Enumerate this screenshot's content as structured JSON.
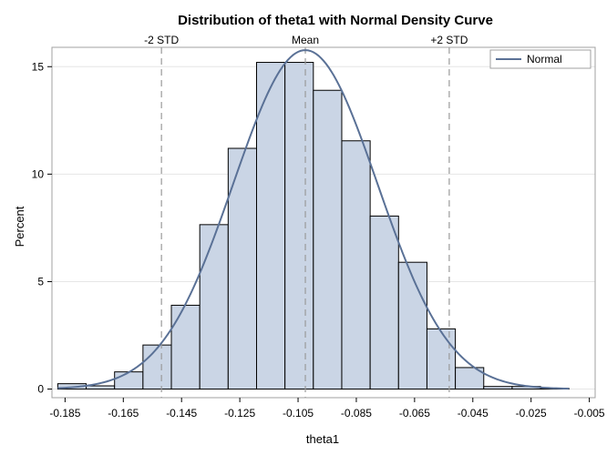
{
  "chart_data": {
    "type": "bar",
    "title": "Distribution of theta1 with Normal Density Curve",
    "xlabel": "theta1",
    "ylabel": "Percent",
    "xlim": [
      -0.1895,
      -0.003
    ],
    "ylim": [
      -0.4,
      15.9
    ],
    "bin_width": 0.00975,
    "bins": [
      {
        "start": -0.1875,
        "value": 0.25
      },
      {
        "start": -0.17775,
        "value": 0.15
      },
      {
        "start": -0.168,
        "value": 0.8
      },
      {
        "start": -0.15825,
        "value": 2.05
      },
      {
        "start": -0.1485,
        "value": 3.9
      },
      {
        "start": -0.13875,
        "value": 7.65
      },
      {
        "start": -0.129,
        "value": 11.2
      },
      {
        "start": -0.11925,
        "value": 15.2
      },
      {
        "start": -0.1095,
        "value": 15.2
      },
      {
        "start": -0.09975,
        "value": 13.9
      },
      {
        "start": -0.09,
        "value": 11.55
      },
      {
        "start": -0.08025,
        "value": 8.05
      },
      {
        "start": -0.0705,
        "value": 5.9
      },
      {
        "start": -0.06075,
        "value": 2.8
      },
      {
        "start": -0.051,
        "value": 1.0
      },
      {
        "start": -0.04125,
        "value": 0.12
      },
      {
        "start": -0.0315,
        "value": 0.12
      },
      {
        "start": -0.02175,
        "value": 0.03
      }
    ],
    "normal_series": {
      "name": "Normal",
      "mean": -0.1025,
      "std": 0.02473,
      "peak": 15.77,
      "x_range": [
        -0.1875,
        -0.012
      ]
    },
    "x_ticks": [
      -0.185,
      -0.165,
      -0.145,
      -0.125,
      -0.105,
      -0.085,
      -0.065,
      -0.045,
      -0.025,
      -0.005
    ],
    "x_tick_labels": [
      "-0.185",
      "-0.165",
      "-0.145",
      "-0.125",
      "-0.105",
      "-0.085",
      "-0.065",
      "-0.045",
      "-0.025",
      "-0.005"
    ],
    "y_ticks": [
      0,
      5,
      10,
      15
    ],
    "y_tick_labels": [
      "0",
      "5",
      "10",
      "15"
    ],
    "reference_lines": [
      {
        "label": "-2 STD",
        "x": -0.1519
      },
      {
        "label": "Mean",
        "x": -0.1025
      },
      {
        "label": "+2 STD",
        "x": -0.0531
      }
    ],
    "legend": {
      "label": "Normal",
      "placement": "top-right"
    },
    "grid": "horizontal",
    "colors": {
      "bar_fill": "#cad5e5",
      "bar_stroke": "#000000",
      "curve": "#5a7196",
      "reference": "#9a9a9a",
      "grid": "#e6e6e6",
      "frame": "#a0a0a0"
    }
  }
}
